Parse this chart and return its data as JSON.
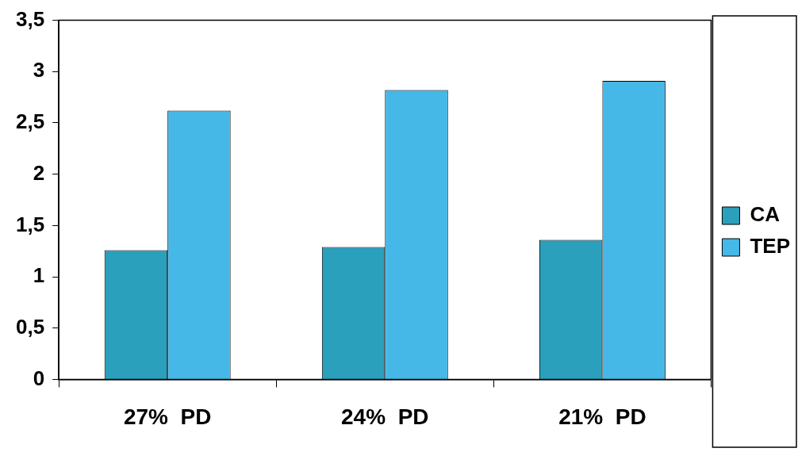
{
  "chart_data": {
    "type": "bar",
    "categories": [
      "27%  PD",
      "24%  PD",
      "21%  PD"
    ],
    "series": [
      {
        "name": "CA",
        "color": "#2aa0bc",
        "values": [
          1.26,
          1.29,
          1.36
        ]
      },
      {
        "name": "TEP",
        "color": "#45b8e8",
        "values": [
          2.62,
          2.82,
          2.91
        ]
      }
    ],
    "ylim": [
      0,
      3.5
    ],
    "yticks": [
      0,
      {
        "value": 0.5,
        "label": "0,5"
      },
      1,
      {
        "value": 1.5,
        "label": "1,5"
      },
      2,
      {
        "value": 2.5,
        "label": "2,5"
      },
      3,
      {
        "value": 3.5,
        "label": "3,5"
      }
    ],
    "grid": false,
    "legend": "right"
  }
}
